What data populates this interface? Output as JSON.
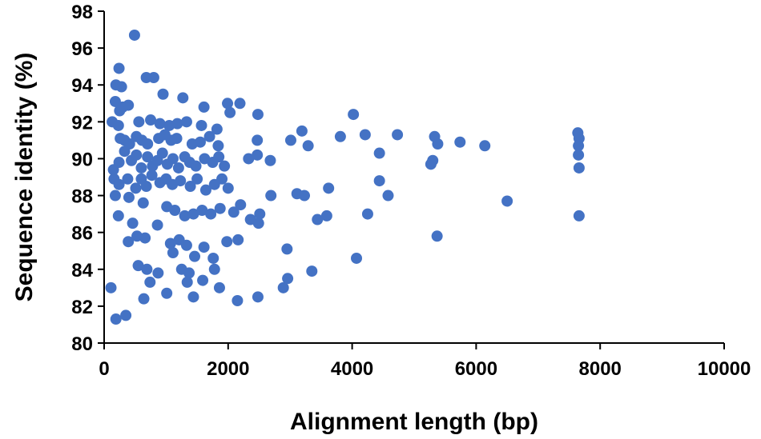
{
  "chart_data": {
    "type": "scatter",
    "title": "",
    "xlabel": "Alignment length (bp)",
    "ylabel": "Sequence identity (%)",
    "xlim": [
      0,
      10000
    ],
    "ylim": [
      80,
      98
    ],
    "xticks": [
      "0",
      "2000",
      "4000",
      "6000",
      "8000",
      "10000"
    ],
    "yticks": [
      "80",
      "82",
      "84",
      "86",
      "88",
      "90",
      "92",
      "94",
      "96",
      "98"
    ],
    "grid": false,
    "legend": "none",
    "marker_color": "#4472C4",
    "series": [
      {
        "points": [
          [
            490,
            96.7
          ],
          [
            240,
            94.9
          ],
          [
            190,
            94.0
          ],
          [
            280,
            93.9
          ],
          [
            680,
            94.4
          ],
          [
            800,
            94.4
          ],
          [
            180,
            93.1
          ],
          [
            300,
            92.8
          ],
          [
            390,
            92.9
          ],
          [
            250,
            92.6
          ],
          [
            950,
            93.5
          ],
          [
            1270,
            93.3
          ],
          [
            1610,
            92.8
          ],
          [
            1990,
            93.0
          ],
          [
            2190,
            93.0
          ],
          [
            2030,
            92.5
          ],
          [
            2480,
            92.4
          ],
          [
            4020,
            92.4
          ],
          [
            130,
            92.0
          ],
          [
            230,
            91.8
          ],
          [
            560,
            92.0
          ],
          [
            750,
            92.1
          ],
          [
            900,
            91.9
          ],
          [
            1050,
            91.8
          ],
          [
            1180,
            91.9
          ],
          [
            1330,
            92.0
          ],
          [
            1570,
            91.8
          ],
          [
            1820,
            91.6
          ],
          [
            3190,
            91.5
          ],
          [
            260,
            91.1
          ],
          [
            330,
            91.0
          ],
          [
            410,
            90.8
          ],
          [
            520,
            91.2
          ],
          [
            610,
            91.0
          ],
          [
            700,
            90.8
          ],
          [
            880,
            91.1
          ],
          [
            980,
            91.3
          ],
          [
            1080,
            91.0
          ],
          [
            1170,
            91.1
          ],
          [
            1420,
            90.8
          ],
          [
            1550,
            90.9
          ],
          [
            1700,
            91.2
          ],
          [
            1840,
            90.7
          ],
          [
            2470,
            91.0
          ],
          [
            3010,
            91.0
          ],
          [
            3290,
            90.7
          ],
          [
            3810,
            91.2
          ],
          [
            4210,
            91.3
          ],
          [
            4730,
            91.3
          ],
          [
            5330,
            91.2
          ],
          [
            5740,
            90.9
          ],
          [
            6140,
            90.7
          ],
          [
            7640,
            91.4
          ],
          [
            7660,
            91.1
          ],
          [
            7650,
            90.7
          ],
          [
            5380,
            90.8
          ],
          [
            150,
            89.4
          ],
          [
            240,
            89.8
          ],
          [
            330,
            90.4
          ],
          [
            440,
            89.9
          ],
          [
            520,
            90.2
          ],
          [
            600,
            89.5
          ],
          [
            700,
            90.1
          ],
          [
            780,
            89.6
          ],
          [
            860,
            89.9
          ],
          [
            940,
            90.3
          ],
          [
            1020,
            89.7
          ],
          [
            1110,
            90.0
          ],
          [
            1200,
            89.5
          ],
          [
            1300,
            90.1
          ],
          [
            1380,
            89.8
          ],
          [
            1480,
            89.6
          ],
          [
            1620,
            90.0
          ],
          [
            1750,
            89.8
          ],
          [
            1850,
            90.1
          ],
          [
            1940,
            89.6
          ],
          [
            2330,
            90.0
          ],
          [
            2470,
            90.2
          ],
          [
            2680,
            89.9
          ],
          [
            4440,
            90.3
          ],
          [
            5300,
            89.9
          ],
          [
            5270,
            89.7
          ],
          [
            7650,
            90.2
          ],
          [
            7660,
            89.5
          ],
          [
            160,
            88.9
          ],
          [
            240,
            88.6
          ],
          [
            380,
            88.9
          ],
          [
            510,
            88.4
          ],
          [
            600,
            88.9
          ],
          [
            680,
            88.5
          ],
          [
            770,
            89.1
          ],
          [
            900,
            88.7
          ],
          [
            1000,
            88.9
          ],
          [
            1100,
            88.6
          ],
          [
            1230,
            88.8
          ],
          [
            1390,
            88.5
          ],
          [
            1500,
            88.9
          ],
          [
            1640,
            88.3
          ],
          [
            1780,
            88.6
          ],
          [
            1900,
            88.9
          ],
          [
            2000,
            88.4
          ],
          [
            3110,
            88.1
          ],
          [
            3230,
            88.0
          ],
          [
            3620,
            88.4
          ],
          [
            4440,
            88.8
          ],
          [
            4580,
            88.0
          ],
          [
            2690,
            88.0
          ],
          [
            180,
            88.0
          ],
          [
            400,
            87.9
          ],
          [
            630,
            87.6
          ],
          [
            1010,
            87.4
          ],
          [
            1140,
            87.2
          ],
          [
            1300,
            86.9
          ],
          [
            1440,
            87.0
          ],
          [
            1580,
            87.2
          ],
          [
            1720,
            87.0
          ],
          [
            1870,
            87.3
          ],
          [
            2090,
            87.1
          ],
          [
            2200,
            87.5
          ],
          [
            2510,
            87.0
          ],
          [
            3440,
            86.7
          ],
          [
            3590,
            86.9
          ],
          [
            4250,
            87.0
          ],
          [
            6500,
            87.7
          ],
          [
            7660,
            86.9
          ],
          [
            230,
            86.9
          ],
          [
            460,
            86.5
          ],
          [
            860,
            86.4
          ],
          [
            2360,
            86.7
          ],
          [
            2490,
            86.5
          ],
          [
            390,
            85.5
          ],
          [
            530,
            85.8
          ],
          [
            660,
            85.7
          ],
          [
            1070,
            85.4
          ],
          [
            1210,
            85.6
          ],
          [
            1330,
            85.3
          ],
          [
            1610,
            85.2
          ],
          [
            1980,
            85.5
          ],
          [
            2160,
            85.6
          ],
          [
            2950,
            85.1
          ],
          [
            5370,
            85.8
          ],
          [
            1110,
            84.9
          ],
          [
            1460,
            84.7
          ],
          [
            1760,
            84.6
          ],
          [
            4070,
            84.6
          ],
          [
            550,
            84.2
          ],
          [
            690,
            84.0
          ],
          [
            870,
            83.8
          ],
          [
            1250,
            84.0
          ],
          [
            1370,
            83.8
          ],
          [
            1780,
            84.0
          ],
          [
            3350,
            83.9
          ],
          [
            1340,
            83.3
          ],
          [
            1590,
            83.4
          ],
          [
            2960,
            83.5
          ],
          [
            110,
            83.0
          ],
          [
            740,
            83.3
          ],
          [
            1010,
            82.7
          ],
          [
            1860,
            83.0
          ],
          [
            2890,
            83.0
          ],
          [
            640,
            82.4
          ],
          [
            1440,
            82.5
          ],
          [
            2150,
            82.3
          ],
          [
            2480,
            82.5
          ],
          [
            190,
            81.3
          ],
          [
            350,
            81.5
          ]
        ]
      }
    ]
  }
}
